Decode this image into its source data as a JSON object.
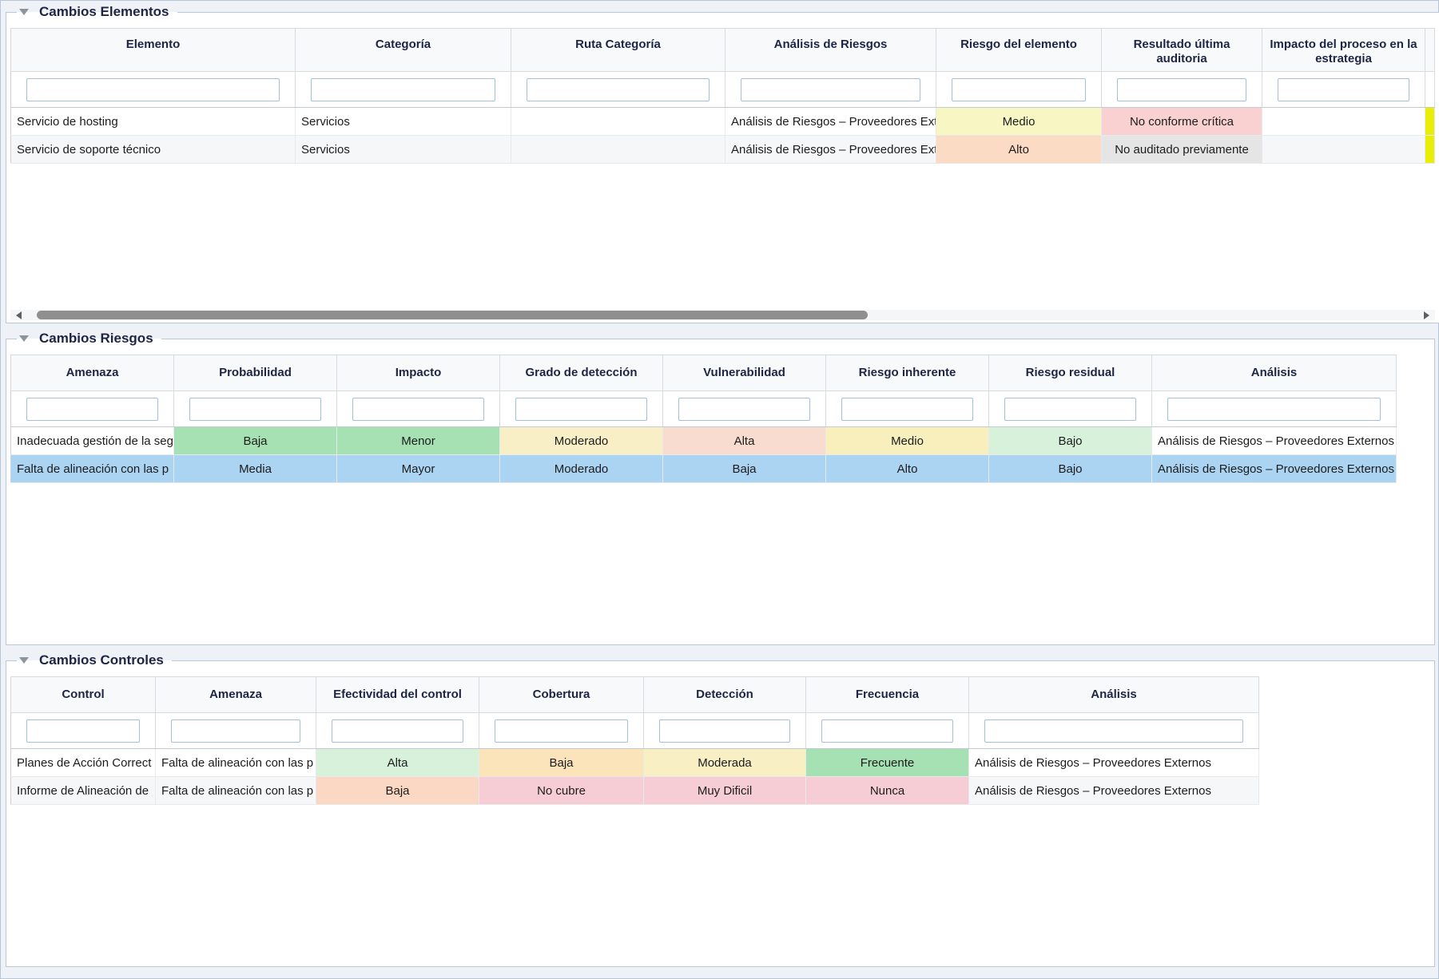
{
  "colors": {
    "selection_blue": "#abd4f3",
    "partial_column_yellow": "#e9ee06",
    "header_text": "#1e2544"
  },
  "sections": [
    {
      "title": "Cambios Elementos",
      "columns": [
        "Elemento",
        "Categoría",
        "Ruta Categoría",
        "Análisis de Riesgos",
        "Riesgo del elemento",
        "Resultado última auditoria",
        "Impacto del proceso en la estrategia"
      ],
      "rows": [
        {
          "cells": [
            {
              "t": "Servicio de hosting"
            },
            {
              "t": "Servicios"
            },
            {
              "t": ""
            },
            {
              "t": "Análisis de Riesgos – Proveedores Externos"
            },
            {
              "t": "Medio",
              "bg": "#f8f7c3"
            },
            {
              "t": "No conforme crítica",
              "bg": "#f9d1d1"
            },
            {
              "t": ""
            },
            {
              "t": "",
              "bg": "#e9ee06"
            }
          ]
        },
        {
          "cells": [
            {
              "t": "Servicio de soporte técnico"
            },
            {
              "t": "Servicios"
            },
            {
              "t": ""
            },
            {
              "t": "Análisis de Riesgos – Proveedores Externos"
            },
            {
              "t": "Alto",
              "bg": "#fcdbc5"
            },
            {
              "t": "No auditado previamente",
              "bg": "#e5e5e5"
            },
            {
              "t": ""
            },
            {
              "t": "",
              "bg": "#e9ee06"
            }
          ]
        }
      ]
    },
    {
      "title": "Cambios Riesgos",
      "columns": [
        "Amenaza",
        "Probabilidad",
        "Impacto",
        "Grado de detección",
        "Vulnerabilidad",
        "Riesgo inherente",
        "Riesgo residual",
        "Análisis"
      ],
      "rows": [
        {
          "cells": [
            {
              "t": "Inadecuada gestión de la seg"
            },
            {
              "t": "Baja",
              "bg": "#a6e1b3"
            },
            {
              "t": "Menor",
              "bg": "#a6e1b3"
            },
            {
              "t": "Moderado",
              "bg": "#f9efc7"
            },
            {
              "t": "Alta",
              "bg": "#f9dcd0"
            },
            {
              "t": "Medio",
              "bg": "#f8efbd"
            },
            {
              "t": "Bajo",
              "bg": "#d7f1db"
            },
            {
              "t": "Análisis de Riesgos – Proveedores Externos"
            }
          ]
        },
        {
          "selected": true,
          "cells": [
            {
              "t": "Falta de alineación con las p"
            },
            {
              "t": "Media"
            },
            {
              "t": "Mayor"
            },
            {
              "t": "Moderado"
            },
            {
              "t": "Baja"
            },
            {
              "t": "Alto"
            },
            {
              "t": "Bajo"
            },
            {
              "t": "Análisis de Riesgos – Proveedores Externos"
            }
          ]
        }
      ]
    },
    {
      "title": "Cambios Controles",
      "columns": [
        "Control",
        "Amenaza",
        "Efectividad del control",
        "Cobertura",
        "Detección",
        "Frecuencia",
        "Análisis"
      ],
      "rows": [
        {
          "cells": [
            {
              "t": "Planes de Acción Correct"
            },
            {
              "t": "Falta de alineación con las p"
            },
            {
              "t": "Alta",
              "bg": "#d7f1db"
            },
            {
              "t": "Baja",
              "bg": "#fbe3ba"
            },
            {
              "t": "Moderada",
              "bg": "#f9efc4"
            },
            {
              "t": "Frecuente",
              "bg": "#a6e1b3"
            },
            {
              "t": "Análisis de Riesgos – Proveedores Externos"
            }
          ]
        },
        {
          "cells": [
            {
              "t": "Informe de Alineación de"
            },
            {
              "t": "Falta de alineación con las p"
            },
            {
              "t": "Baja",
              "bg": "#fbd8c3"
            },
            {
              "t": "No cubre",
              "bg": "#f7cdd5"
            },
            {
              "t": "Muy Dificil",
              "bg": "#f7cdd5"
            },
            {
              "t": "Nunca",
              "bg": "#f7cdd5"
            },
            {
              "t": "Análisis de Riesgos – Proveedores Externos"
            }
          ]
        }
      ]
    }
  ]
}
